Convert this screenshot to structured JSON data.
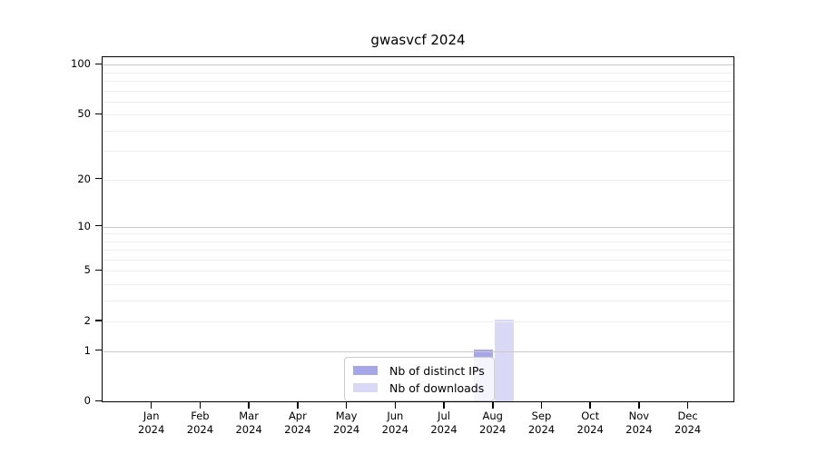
{
  "chart_data": {
    "type": "bar",
    "title": "gwasvcf 2024",
    "year": "2024",
    "months": [
      "Jan",
      "Feb",
      "Mar",
      "Apr",
      "May",
      "Jun",
      "Jul",
      "Aug",
      "Sep",
      "Oct",
      "Nov",
      "Dec"
    ],
    "series": [
      {
        "name": "Nb of distinct IPs",
        "color": "#a6a6e9",
        "values": [
          0,
          0,
          0,
          0,
          0,
          0,
          0,
          1,
          0,
          0,
          0,
          0
        ]
      },
      {
        "name": "Nb of downloads",
        "color": "#d9d9f7",
        "values": [
          0,
          0,
          0,
          0,
          0,
          0,
          0,
          2,
          0,
          0,
          0,
          0
        ]
      }
    ],
    "yscale": "log1p",
    "ylim": [
      0,
      110
    ],
    "yticks": [
      0,
      1,
      2,
      5,
      10,
      20,
      50,
      100
    ],
    "major_gridlines": [
      1,
      10,
      100
    ],
    "minor_gridlines": [
      2,
      3,
      4,
      5,
      6,
      7,
      8,
      9,
      20,
      30,
      40,
      50,
      60,
      70,
      80,
      90
    ],
    "legend_position": "bottom-center",
    "grid": true,
    "colors": {
      "major_grid": "#c9c9c9",
      "minor_grid": "#ededed",
      "spine": "#000000",
      "background": "#ffffff"
    }
  }
}
